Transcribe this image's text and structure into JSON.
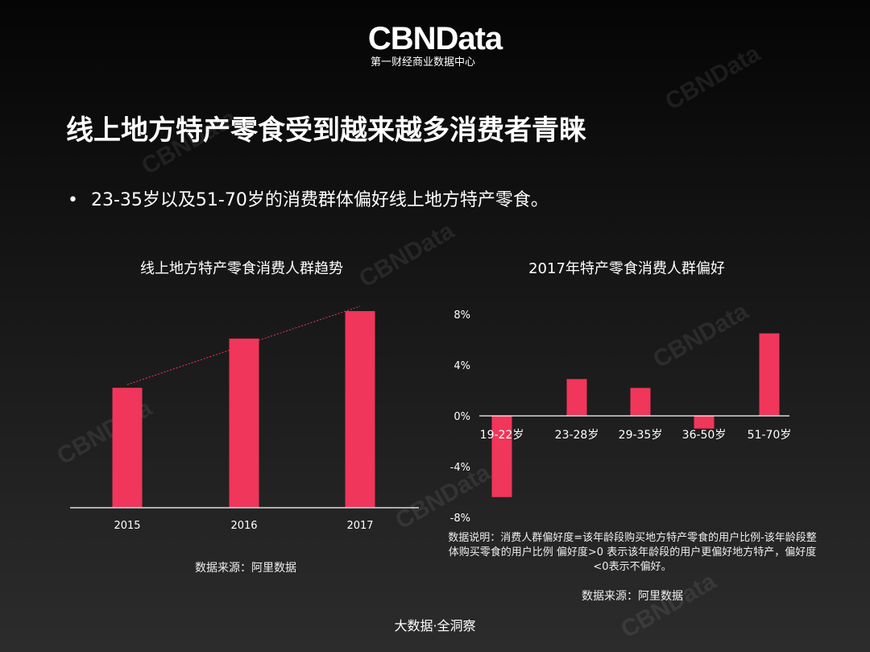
{
  "logo": {
    "brand": "CBNData",
    "subtitle": "第一财经商业数据中心"
  },
  "title": "线上地方特产零食受到越来越多消费者青睐",
  "bullet": {
    "marker": "•",
    "text": "23-35岁以及51-70岁的消费群体偏好线上地方特产零食。"
  },
  "left_source": "数据来源：阿里数据",
  "right_note": "数据说明：消费人群偏好度=该年龄段购买地方特产零食的用户比例-该年龄段整体购买零食的用户比例 偏好度>0 表示该年龄段的用户更偏好地方特产，偏好度<0表示不偏好。",
  "right_source": "数据来源：阿里数据",
  "footer": "大数据·全洞察",
  "watermark": "CBNData",
  "colors": {
    "bar": "#f0365a",
    "trend": "#f0365a",
    "axis": "#ffffff"
  },
  "chart_data": [
    {
      "type": "bar",
      "title": "线上地方特产零食消费人群趋势",
      "categories": [
        "2015",
        "2016",
        "2017"
      ],
      "values": [
        61,
        86,
        100
      ],
      "value_note_unit": "relative (no axis printed)",
      "trendline": true,
      "grid": false
    },
    {
      "type": "bar",
      "title": "2017年特产零食消费人群偏好",
      "categories": [
        "19-22岁",
        "23-28岁",
        "29-35岁",
        "36-50岁",
        "51-70岁"
      ],
      "values": [
        -6.4,
        2.9,
        2.2,
        -1.0,
        6.5
      ],
      "ylim": [
        -8,
        8
      ],
      "yticks": [
        "8%",
        "4%",
        "0%",
        "-4%",
        "-8%"
      ],
      "ytick_values": [
        8,
        4,
        0,
        -4,
        -8
      ],
      "grid": false
    }
  ]
}
